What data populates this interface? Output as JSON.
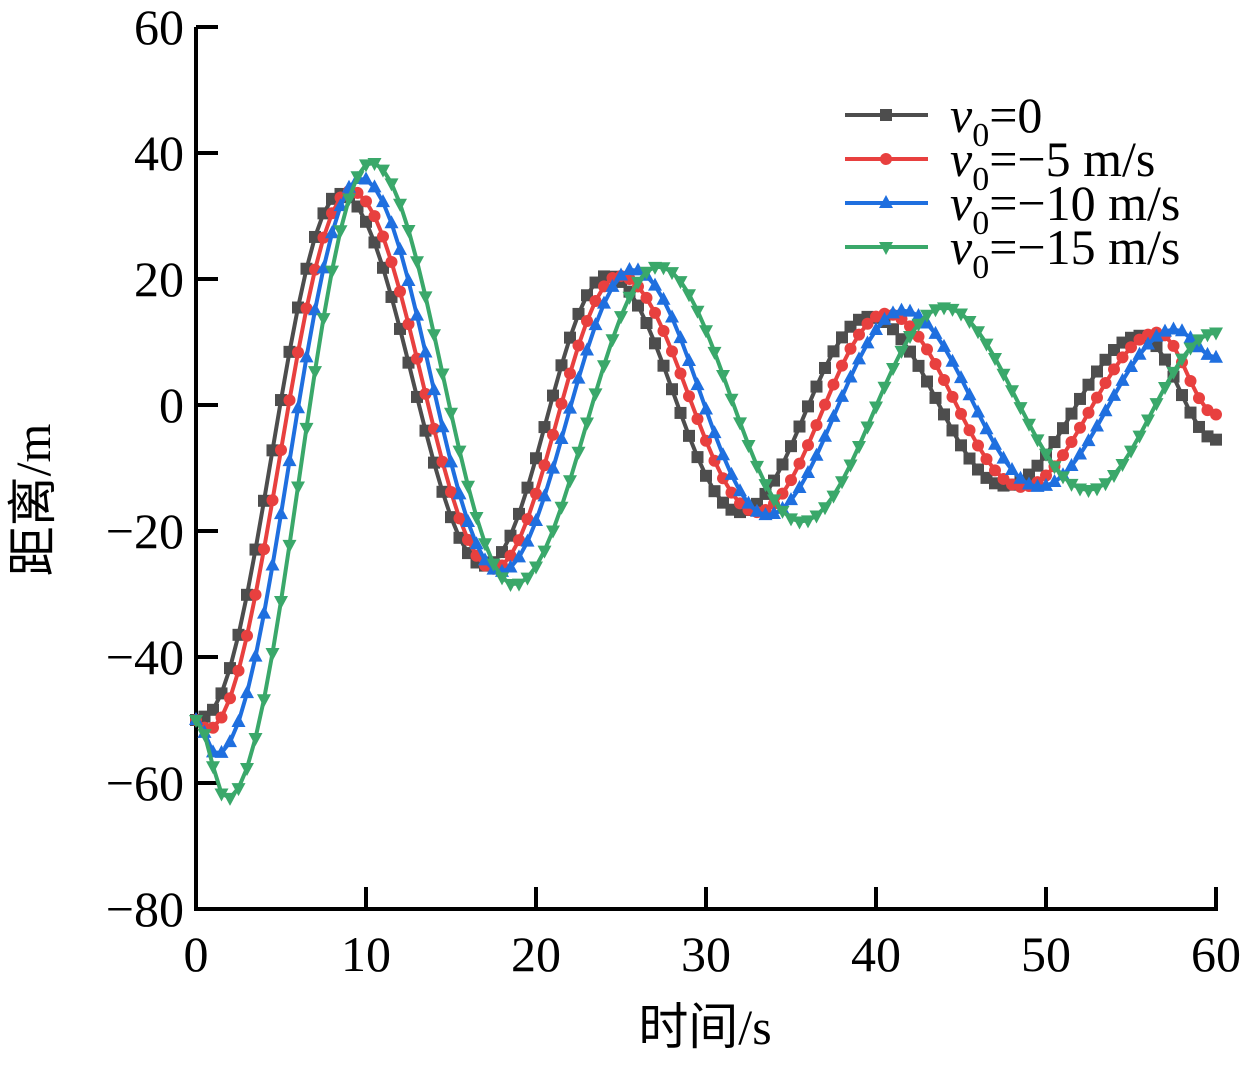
{
  "chart_data": {
    "type": "line",
    "title": "",
    "xlabel": "时间/s",
    "ylabel": "距离/m",
    "xlim": [
      0,
      60
    ],
    "ylim": [
      -80,
      60
    ],
    "xticks": [
      "0",
      "10",
      "20",
      "30",
      "40",
      "50",
      "60"
    ],
    "yticks": [
      "−80",
      "−60",
      "−40",
      "−20",
      "0",
      "20",
      "40",
      "60"
    ],
    "grid": false,
    "legend_position": "top-right",
    "sample_step": 0.5,
    "series": [
      {
        "name": "v0=0",
        "label_var": "v",
        "label_sub": "0",
        "label_rest": "=0",
        "color": "#4d4d4d",
        "marker": "square",
        "keypoints": [
          [
            0,
            -50
          ],
          [
            0.4,
            -49.5
          ],
          [
            8.5,
            33.5
          ],
          [
            17,
            -25.5
          ],
          [
            24.2,
            20.5
          ],
          [
            32,
            -17
          ],
          [
            39.6,
            14
          ],
          [
            47.6,
            -12.8
          ],
          [
            55.6,
            11
          ],
          [
            60,
            -5.5
          ]
        ]
      },
      {
        "name": "v0=-5 m/s",
        "label_var": "v",
        "label_sub": "0",
        "label_rest": "=−5 m/s",
        "color": "#e8403f",
        "marker": "circle",
        "keypoints": [
          [
            0,
            -50
          ],
          [
            0.7,
            -51.5
          ],
          [
            9.1,
            34
          ],
          [
            17.5,
            -26
          ],
          [
            24.9,
            20.5
          ],
          [
            33,
            -17
          ],
          [
            40.6,
            14.5
          ],
          [
            48.6,
            -13
          ],
          [
            56.6,
            11.5
          ],
          [
            60,
            -1.5
          ]
        ]
      },
      {
        "name": "v0=-10 m/s",
        "label_var": "v",
        "label_sub": "0",
        "label_rest": "=−10 m/s",
        "color": "#1f6fdf",
        "marker": "triangle-up",
        "keypoints": [
          [
            0,
            -50
          ],
          [
            1.2,
            -55.5
          ],
          [
            9.7,
            36
          ],
          [
            17.9,
            -26.5
          ],
          [
            25.7,
            21.5
          ],
          [
            33.6,
            -17.5
          ],
          [
            41.6,
            15
          ],
          [
            49.6,
            -13
          ],
          [
            57.6,
            12
          ],
          [
            60,
            7.5
          ]
        ]
      },
      {
        "name": "v0=-15 m/s",
        "label_var": "v",
        "label_sub": "0",
        "label_rest": "=−15 m/s",
        "color": "#3aa86a",
        "marker": "triangle-down",
        "keypoints": [
          [
            0,
            -50
          ],
          [
            1.8,
            -62.5
          ],
          [
            10.3,
            38.5
          ],
          [
            18.7,
            -28.5
          ],
          [
            27.2,
            22
          ],
          [
            35.6,
            -18.5
          ],
          [
            44,
            15.5
          ],
          [
            52.5,
            -13.5
          ],
          [
            60,
            11.5
          ]
        ]
      }
    ]
  }
}
